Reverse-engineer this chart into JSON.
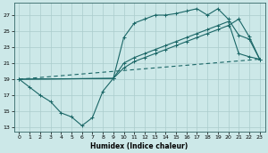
{
  "xlabel": "Humidex (Indice chaleur)",
  "bg_color": "#cce8e8",
  "grid_color": "#aacccc",
  "line_color": "#1a6666",
  "xlim": [
    -0.5,
    23.5
  ],
  "ylim": [
    12.5,
    28.5
  ],
  "xticks": [
    0,
    1,
    2,
    3,
    4,
    5,
    6,
    7,
    8,
    9,
    10,
    11,
    12,
    13,
    14,
    15,
    16,
    17,
    18,
    19,
    20,
    21,
    22,
    23
  ],
  "yticks": [
    13,
    15,
    17,
    19,
    21,
    23,
    25,
    27
  ],
  "line1_x": [
    0,
    1,
    2,
    3,
    4,
    5,
    6,
    7,
    8,
    9,
    10,
    11,
    12,
    13,
    14,
    15,
    16,
    17,
    18,
    19,
    20,
    21,
    22,
    23
  ],
  "line1_y": [
    19.0,
    18.0,
    17.0,
    16.2,
    14.8,
    14.3,
    13.2,
    14.2,
    17.5,
    19.1,
    24.2,
    26.0,
    26.5,
    27.0,
    27.0,
    27.2,
    27.5,
    27.8,
    27.0,
    27.8,
    26.5,
    24.5,
    24.0,
    21.5
  ],
  "line2_x": [
    0,
    9,
    10,
    11,
    12,
    13,
    14,
    15,
    16,
    17,
    18,
    19,
    20,
    21,
    22,
    23
  ],
  "line2_y": [
    19.0,
    19.1,
    21.0,
    21.7,
    22.2,
    22.7,
    23.2,
    23.7,
    24.2,
    24.7,
    25.2,
    25.7,
    26.2,
    22.2,
    21.8,
    21.5
  ],
  "line3_x": [
    0,
    9,
    10,
    11,
    12,
    13,
    14,
    15,
    16,
    17,
    18,
    19,
    20,
    21,
    22,
    23
  ],
  "line3_y": [
    19.0,
    19.1,
    20.4,
    21.2,
    21.7,
    22.2,
    22.7,
    23.2,
    23.7,
    24.2,
    24.7,
    25.2,
    25.7,
    26.5,
    24.3,
    21.5
  ],
  "line4_x": [
    0,
    23
  ],
  "line4_y": [
    19.0,
    21.5
  ]
}
